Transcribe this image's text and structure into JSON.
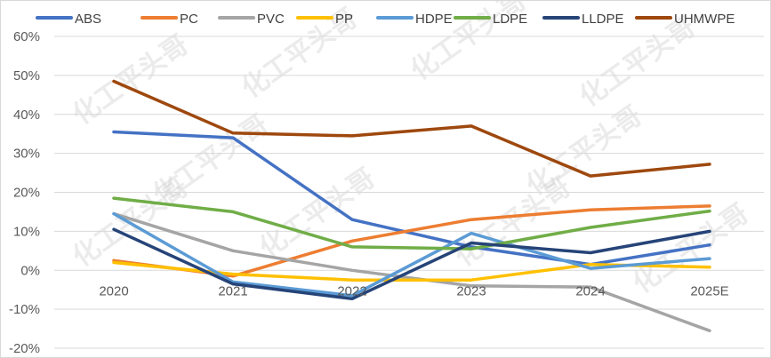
{
  "chart_data": {
    "type": "line",
    "title": "",
    "xlabel": "",
    "ylabel": "",
    "x": [
      "2020",
      "2021",
      "2022",
      "2023",
      "2024",
      "2025E"
    ],
    "ylim": [
      -20,
      60
    ],
    "yticks": [
      -20,
      -10,
      0,
      10,
      20,
      30,
      40,
      50,
      60
    ],
    "ytick_labels": [
      "-20%",
      "-10%",
      "0%",
      "10%",
      "20%",
      "30%",
      "40%",
      "50%",
      "60%"
    ],
    "grid": true,
    "legend_position": "top",
    "watermark": "化工平头哥",
    "series": [
      {
        "name": "ABS",
        "color": "#4472C4",
        "values": [
          35.5,
          34,
          13,
          6,
          1.5,
          6.5
        ]
      },
      {
        "name": "PC",
        "color": "#ED7D31",
        "values": [
          2.5,
          -1.5,
          7.5,
          13,
          15.5,
          16.5
        ]
      },
      {
        "name": "PVC",
        "color": "#A5A5A5",
        "values": [
          14.5,
          5,
          0,
          -4,
          -4.3,
          -15.5
        ]
      },
      {
        "name": "PP",
        "color": "#FFC000",
        "values": [
          2,
          -1,
          -2.5,
          -2.5,
          1.5,
          0.8
        ]
      },
      {
        "name": "HDPE",
        "color": "#5B9BD5",
        "values": [
          14.5,
          -3,
          -6.5,
          9.5,
          0.5,
          3
        ]
      },
      {
        "name": "LDPE",
        "color": "#70AD47",
        "values": [
          18.5,
          15,
          6,
          5.5,
          11,
          15.2
        ]
      },
      {
        "name": "LLDPE",
        "color": "#264478",
        "values": [
          10.5,
          -3.5,
          -7.3,
          7,
          4.5,
          10
        ]
      },
      {
        "name": "UHMWPE",
        "color": "#9E480E",
        "values": [
          48.5,
          35.2,
          34.5,
          37,
          24.2,
          27.2
        ]
      }
    ]
  }
}
